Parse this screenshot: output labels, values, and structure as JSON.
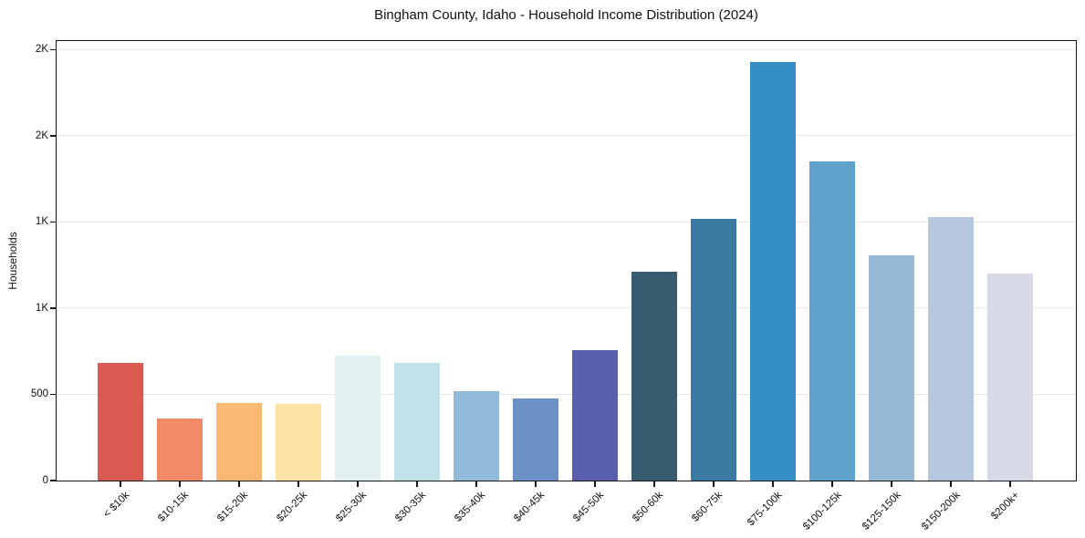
{
  "figure": {
    "background": "#ffffff"
  },
  "chart_data": {
    "type": "bar",
    "title": "Bingham County, Idaho - Household Income Distribution (2024)",
    "xlabel": "",
    "ylabel": "Households",
    "categories": [
      "< $10k",
      "$10-15k",
      "$15-20k",
      "$20-25k",
      "$25-30k",
      "$30-35k",
      "$35-40k",
      "$40-45k",
      "$45-50k",
      "$50-60k",
      "$60-75k",
      "$75-100k",
      "$100-125k",
      "$125-150k",
      "$150-200k",
      "$200k+"
    ],
    "values": [
      684,
      358,
      451,
      444,
      727,
      681,
      519,
      476,
      757,
      1212,
      1516,
      2427,
      1853,
      1305,
      1531,
      1199
    ],
    "bar_colors": [
      "#d95b52",
      "#f28a68",
      "#f9b973",
      "#fde3a6",
      "#e3f0f2",
      "#c2e2ea",
      "#90bad8",
      "#6b90c5",
      "#5a5fad",
      "#375c70",
      "#3a7aa2",
      "#358ec4",
      "#5fa2cc",
      "#96b9d8",
      "#b7c7e0",
      "#d7d9e6"
    ],
    "ylim": [
      0,
      2550
    ],
    "yticks": [
      {
        "value": 0,
        "label": "0"
      },
      {
        "value": 500,
        "label": "500"
      },
      {
        "value": 1000,
        "label": "1K"
      },
      {
        "value": 1500,
        "label": "1K"
      },
      {
        "value": 2000,
        "label": "2K"
      },
      {
        "value": 2500,
        "label": "2K"
      }
    ],
    "grid": "horizontal-light",
    "legend": "none",
    "axis_color": "#161616",
    "grid_color": "#e8e8e8"
  }
}
